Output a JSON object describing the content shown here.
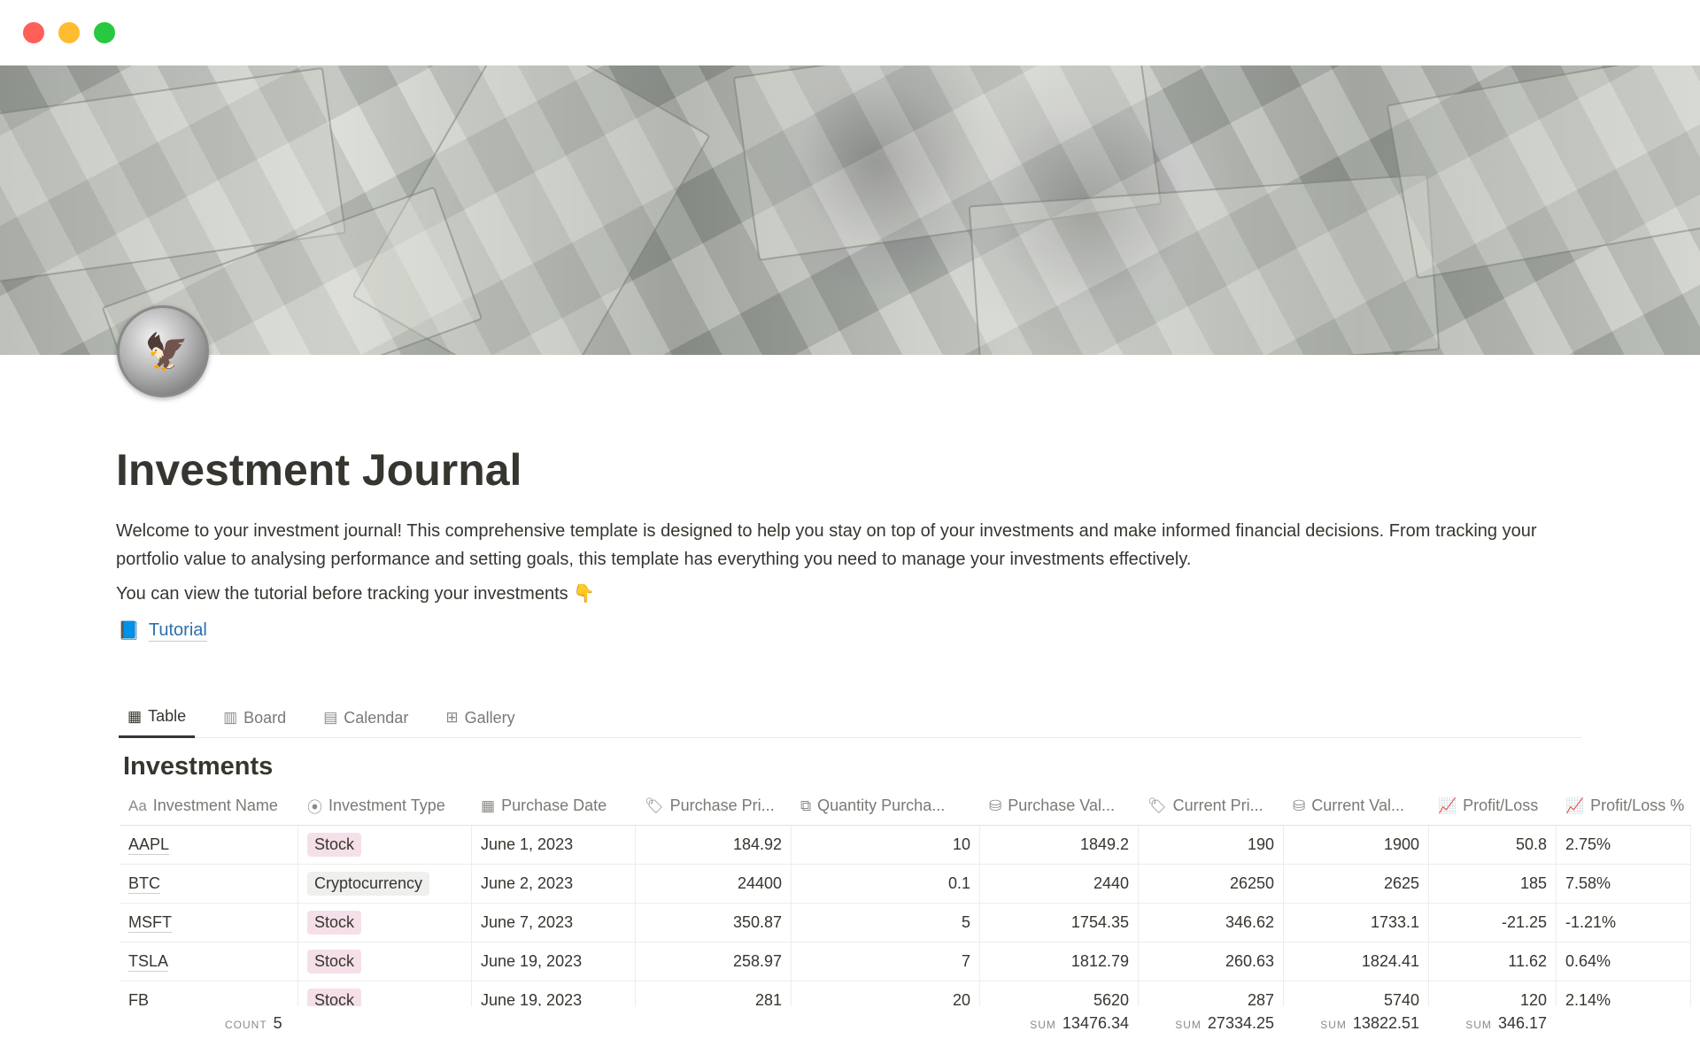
{
  "window": {
    "controls": {
      "close_color": "#fe5f57",
      "minimize_color": "#febc2e",
      "maximize_color": "#28c840"
    }
  },
  "page": {
    "title": "Investment Journal",
    "description": "Welcome to your investment journal! This comprehensive template is designed to help you stay on top of your investments and make informed financial decisions. From tracking your portfolio value to analysing performance and setting goals, this template has everything you need to manage your investments effectively.",
    "tutorial_prompt": "You can view the tutorial before tracking your investments 👇",
    "tutorial_link": "Tutorial",
    "tutorial_icon": "📘"
  },
  "views": {
    "tabs": [
      {
        "label": "Table",
        "icon": "table-icon",
        "active": true
      },
      {
        "label": "Board",
        "icon": "board-icon"
      },
      {
        "label": "Calendar",
        "icon": "calendar-icon"
      },
      {
        "label": "Gallery",
        "icon": "gallery-icon"
      }
    ]
  },
  "database": {
    "title": "Investments",
    "columns": [
      {
        "label": "Investment Name",
        "icon": "Aa"
      },
      {
        "label": "Investment Type",
        "icon": "⦿"
      },
      {
        "label": "Purchase Date",
        "icon": "▦"
      },
      {
        "label": "Purchase Pri...",
        "icon": "🏷"
      },
      {
        "label": "Quantity Purcha...",
        "icon": "⧉"
      },
      {
        "label": "Purchase Val...",
        "icon": "⛁"
      },
      {
        "label": "Current Pri...",
        "icon": "🏷"
      },
      {
        "label": "Current Val...",
        "icon": "⛁"
      },
      {
        "label": "Profit/Loss",
        "icon": "📈"
      },
      {
        "label": "Profit/Loss %",
        "icon": "📈"
      }
    ],
    "type_colors": {
      "Stock": "#f5e0e9",
      "Cryptocurrency": "#efefed"
    },
    "rows": [
      [
        "AAPL",
        "Stock",
        "June 1, 2023",
        "184.92",
        "10",
        "1849.2",
        "190",
        "1900",
        "50.8",
        "2.75%"
      ],
      [
        "BTC",
        "Cryptocurrency",
        "June 2, 2023",
        "24400",
        "0.1",
        "2440",
        "26250",
        "2625",
        "185",
        "7.58%"
      ],
      [
        "MSFT",
        "Stock",
        "June 7, 2023",
        "350.87",
        "5",
        "1754.35",
        "346.62",
        "1733.1",
        "-21.25",
        "-1.21%"
      ],
      [
        "TSLA",
        "Stock",
        "June 19, 2023",
        "258.97",
        "7",
        "1812.79",
        "260.63",
        "1824.41",
        "11.62",
        "0.64%"
      ],
      [
        "FB",
        "Stock",
        "June 19, 2023",
        "281",
        "20",
        "5620",
        "287",
        "5740",
        "120",
        "2.14%"
      ]
    ],
    "footer": {
      "count_label": "COUNT",
      "count": "5",
      "sum_label": "SUM",
      "purchase_value_sum": "13476.34",
      "current_price_sum": "27334.25",
      "current_value_sum": "13822.51",
      "profit_loss_sum": "346.17"
    }
  }
}
